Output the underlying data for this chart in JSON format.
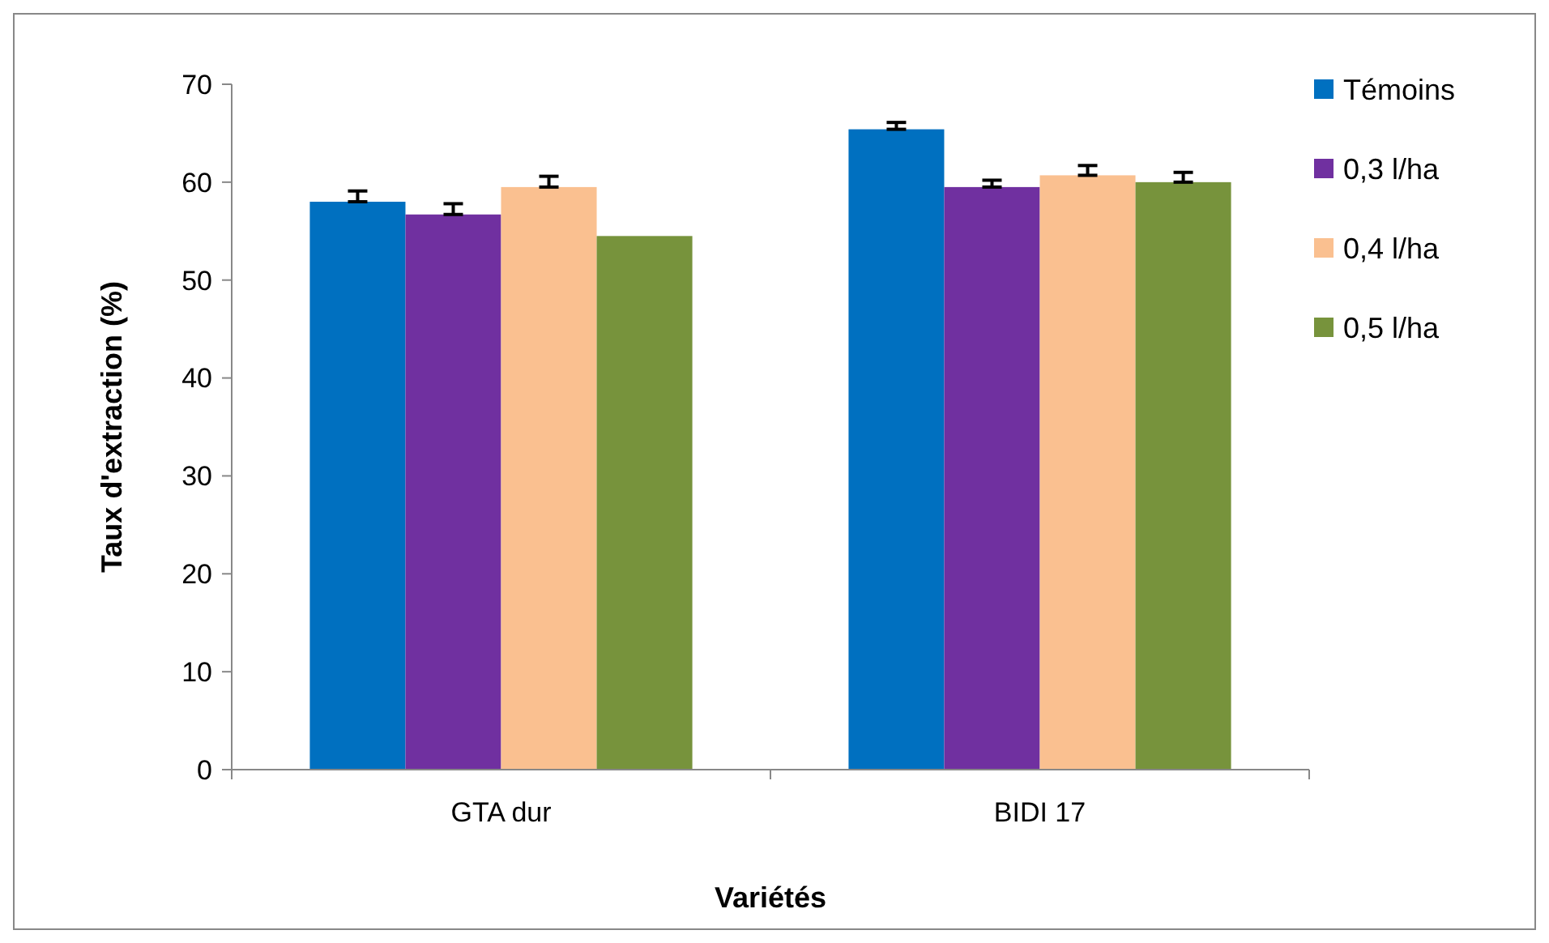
{
  "chart_data": {
    "type": "bar",
    "xlabel": "Variétés",
    "ylabel": "Taux d'extraction (%)",
    "categories": [
      "GTA dur",
      "BIDI 17"
    ],
    "series": [
      {
        "name": "Témoins",
        "color": "#0070c0",
        "values": [
          58.0,
          65.4
        ],
        "errors": [
          [
            58.0,
            59.1
          ],
          [
            65.4,
            66.1
          ]
        ]
      },
      {
        "name": "0,3 l/ha",
        "color": "#7030a0",
        "values": [
          56.7,
          59.5
        ],
        "errors": [
          [
            56.7,
            57.8
          ],
          [
            59.5,
            60.2
          ]
        ]
      },
      {
        "name": "0,4 l/ha",
        "color": "#fac090",
        "values": [
          59.5,
          60.7
        ],
        "errors": [
          [
            59.5,
            60.6
          ],
          [
            60.7,
            61.7
          ]
        ]
      },
      {
        "name": "0,5 l/ha",
        "color": "#77933c",
        "values": [
          54.5,
          60.0
        ],
        "errors": [
          null,
          [
            60.0,
            61.0
          ]
        ]
      }
    ],
    "ylim": [
      0,
      70
    ],
    "yticks": [
      0,
      10,
      20,
      30,
      40,
      50,
      60,
      70
    ],
    "grid": false,
    "legend": "right"
  }
}
